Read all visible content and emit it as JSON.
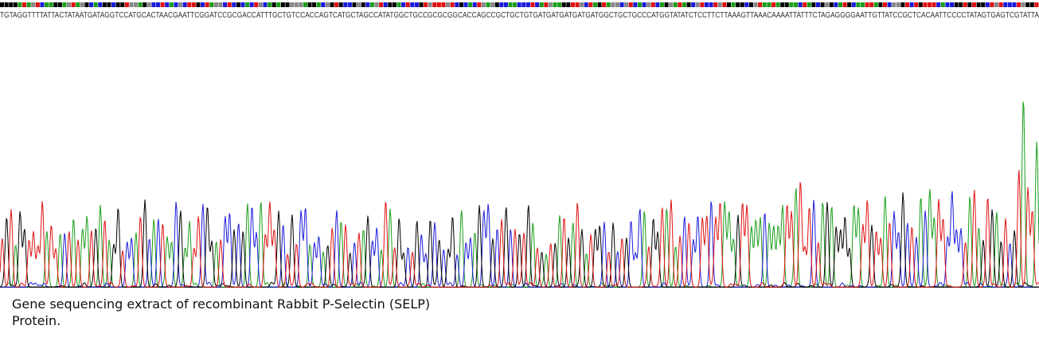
{
  "sequence": "TGTAGGTTTTATTACTATAATGATAGGTCCATGCACTAACGAATTCGGATCCGCGACCATTTGCTGTCCACCAGTCATGCTAGCCATATGGCTGCCGCGCGGCACCAGCCGCTGCTGTGATGATGATGATGATGGCTGCTGCCCATGGTATATCTCCTTCTTAAAGTTAAACAAAATTATTTCTAGAGGGGAATTGTTATCCGCTCACAATTCCCCTATAGTGAGTCGTATTA",
  "caption": {
    "lines": [
      "Gene sequencing extract of recombinant Rabbit P-Selectin (SELP)",
      "Protein."
    ]
  }
}
